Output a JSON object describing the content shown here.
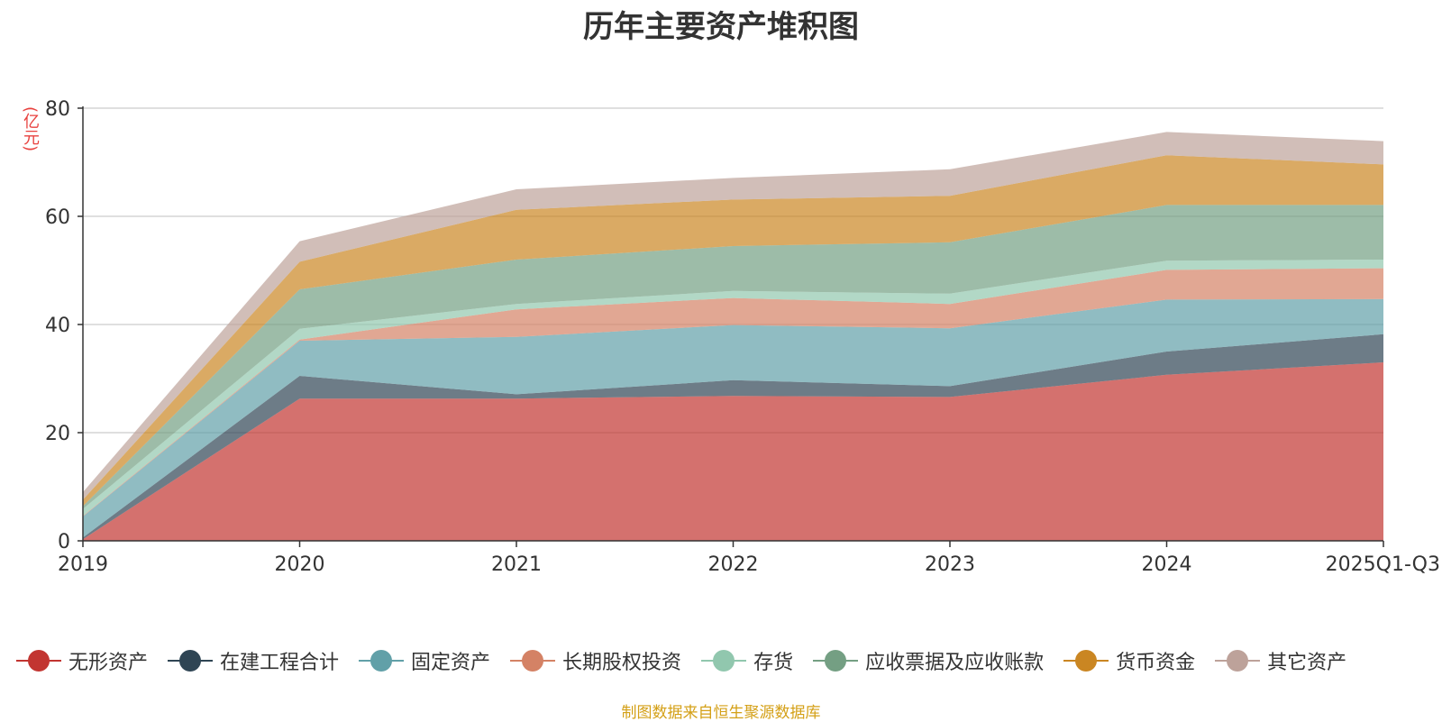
{
  "chart_data": {
    "type": "area",
    "title": "历年主要资产堆积图",
    "ylabel": "(亿元)",
    "xlabel": "",
    "ylim": [
      0,
      80
    ],
    "yticks": [
      0,
      20,
      40,
      60,
      80
    ],
    "categories": [
      "2019",
      "2020",
      "2021",
      "2022",
      "2023",
      "2024",
      "2025Q1-Q3"
    ],
    "stacked": true,
    "grid": true,
    "legend_position": "bottom",
    "series": [
      {
        "name": "无形资产",
        "color": "#c23531",
        "values": [
          0.3,
          26.3,
          26.3,
          26.8,
          26.6,
          30.7,
          33.0
        ]
      },
      {
        "name": "在建工程合计",
        "color": "#2f4554",
        "values": [
          0.3,
          4.2,
          0.8,
          2.9,
          2.0,
          4.3,
          5.2
        ]
      },
      {
        "name": "固定资产",
        "color": "#61a0a8",
        "values": [
          3.9,
          6.5,
          10.6,
          10.2,
          10.7,
          9.6,
          6.5
        ]
      },
      {
        "name": "长期股权投资",
        "color": "#d48265",
        "values": [
          0.1,
          0.2,
          5.1,
          5.0,
          4.5,
          5.5,
          5.7
        ]
      },
      {
        "name": "存货",
        "color": "#91c7ae",
        "values": [
          1.3,
          2.0,
          1.0,
          1.3,
          1.9,
          1.7,
          1.6
        ]
      },
      {
        "name": "应收票据及应收账款",
        "color": "#749f83",
        "values": [
          0.5,
          7.3,
          8.2,
          8.3,
          9.5,
          10.3,
          10.1
        ]
      },
      {
        "name": "货币资金",
        "color": "#ca8622",
        "values": [
          1.2,
          5.1,
          9.2,
          8.6,
          8.6,
          9.2,
          7.5
        ]
      },
      {
        "name": "其它资产",
        "color": "#bda29a",
        "values": [
          1.4,
          3.8,
          3.8,
          4.0,
          4.9,
          4.3,
          4.3
        ]
      }
    ]
  },
  "source_note": "制图数据来自恒生聚源数据库"
}
